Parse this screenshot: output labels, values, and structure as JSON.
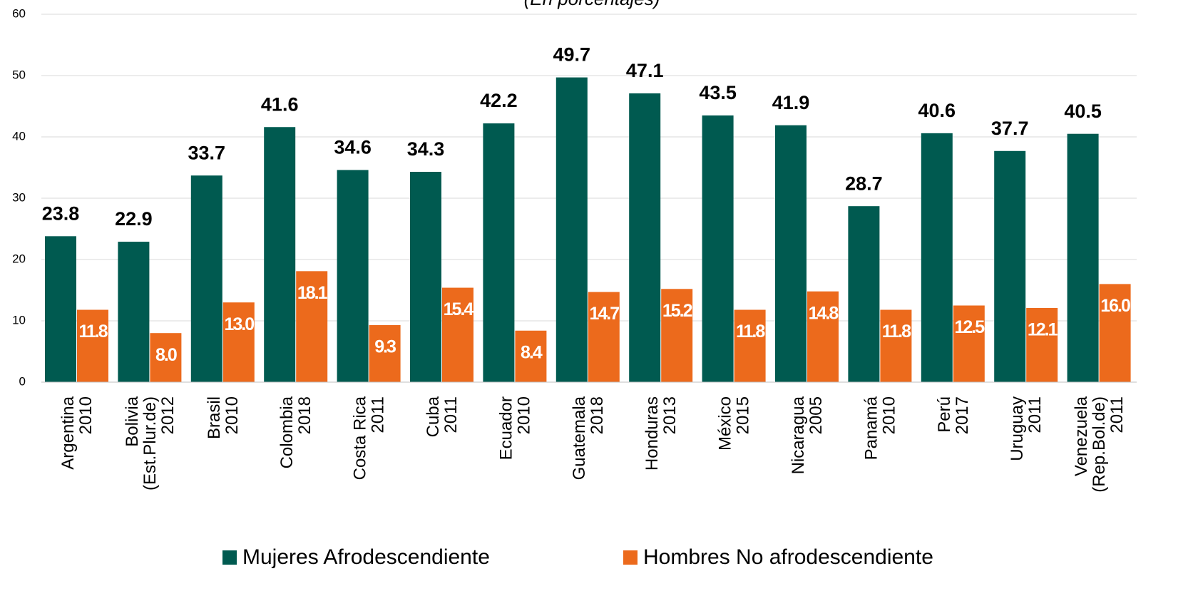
{
  "chart_data": {
    "type": "bar",
    "subtitle": "(En porcentajes)",
    "categories": [
      [
        "Argentina",
        "2010"
      ],
      [
        "Bolivia",
        "(Est.Plur.de)",
        "2012"
      ],
      [
        "Brasil",
        "2010"
      ],
      [
        "Colombia",
        "2018"
      ],
      [
        "Costa Rica",
        "2011"
      ],
      [
        "Cuba",
        "2011"
      ],
      [
        "Ecuador",
        "2010"
      ],
      [
        "Guatemala",
        "2018"
      ],
      [
        "Honduras",
        "2013"
      ],
      [
        "México",
        "2015"
      ],
      [
        "Nicaragua",
        "2005"
      ],
      [
        "Panamá",
        "2010"
      ],
      [
        "Perú",
        "2017"
      ],
      [
        "Uruguay",
        "2011"
      ],
      [
        "Venezuela",
        "(Rep.Bol.de)",
        "2011"
      ]
    ],
    "series": [
      {
        "name": "Mujeres Afrodescendiente",
        "color": "#005a50",
        "values": [
          23.8,
          22.9,
          33.7,
          41.6,
          34.6,
          34.3,
          42.2,
          49.7,
          47.1,
          43.5,
          41.9,
          28.7,
          40.6,
          37.7,
          40.5
        ]
      },
      {
        "name": "Hombres No afrodescendiente",
        "color": "#ec6a1c",
        "values": [
          11.8,
          8.0,
          13.0,
          18.1,
          9.3,
          15.4,
          8.4,
          14.7,
          15.2,
          11.8,
          14.8,
          11.8,
          12.5,
          12.1,
          16.0
        ],
        "value_labels": [
          "11.8",
          "8.0",
          "13.0",
          "18.1",
          "9.3",
          "15.4",
          "8.4",
          "14.7",
          "15.2",
          "11.8",
          "14.8",
          "11.8",
          "12.5",
          "12.1",
          "16.0"
        ]
      }
    ],
    "ylim": [
      0,
      60
    ],
    "yticks": [
      0,
      10,
      20,
      30,
      40,
      50,
      60
    ],
    "grid": true,
    "legend": "bottom"
  }
}
